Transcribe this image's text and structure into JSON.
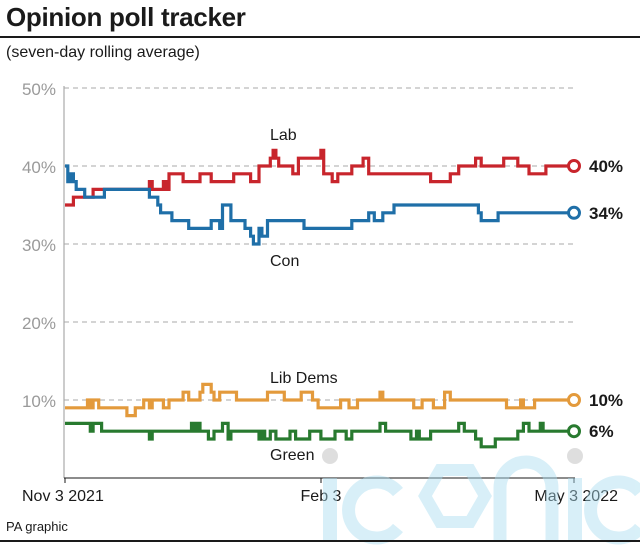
{
  "title": "Opinion poll tracker",
  "subtitle": "(seven-day rolling average)",
  "credit": "PA graphic",
  "watermark": "iconic",
  "chart_data": {
    "type": "line",
    "y_ticks": [
      "50%",
      "40%",
      "30%",
      "20%",
      "10%"
    ],
    "ylim": [
      0,
      50
    ],
    "x_ticks": [
      "Nov 3 2021",
      "Feb 3",
      "May 3 2022"
    ],
    "xlim": [
      0,
      181
    ],
    "grid": true,
    "series": [
      {
        "name": "Lab",
        "color": "#c8252c",
        "end_label": "40%",
        "points": [
          [
            0,
            35
          ],
          [
            3,
            35
          ],
          [
            3,
            36
          ],
          [
            10,
            36
          ],
          [
            10,
            37
          ],
          [
            30,
            37
          ],
          [
            30,
            38
          ],
          [
            31,
            38
          ],
          [
            31,
            37
          ],
          [
            35,
            37
          ],
          [
            35,
            38
          ],
          [
            36,
            38
          ],
          [
            36,
            37
          ],
          [
            37,
            37
          ],
          [
            37,
            39
          ],
          [
            42,
            39
          ],
          [
            42,
            38
          ],
          [
            48,
            38
          ],
          [
            48,
            39
          ],
          [
            52,
            39
          ],
          [
            52,
            38
          ],
          [
            60,
            38
          ],
          [
            60,
            39
          ],
          [
            66,
            39
          ],
          [
            66,
            38
          ],
          [
            69,
            38
          ],
          [
            69,
            40
          ],
          [
            73,
            40
          ],
          [
            73,
            41
          ],
          [
            74,
            41
          ],
          [
            74,
            42
          ],
          [
            75,
            42
          ],
          [
            75,
            41
          ],
          [
            76,
            41
          ],
          [
            76,
            40
          ],
          [
            81,
            40
          ],
          [
            81,
            39
          ],
          [
            83,
            39
          ],
          [
            83,
            41
          ],
          [
            91,
            41
          ],
          [
            91,
            42
          ],
          [
            92,
            42
          ],
          [
            92,
            39
          ],
          [
            95,
            39
          ],
          [
            95,
            38
          ],
          [
            97,
            38
          ],
          [
            97,
            39
          ],
          [
            102,
            39
          ],
          [
            102,
            40
          ],
          [
            106,
            40
          ],
          [
            106,
            41
          ],
          [
            108,
            41
          ],
          [
            108,
            39
          ],
          [
            130,
            39
          ],
          [
            130,
            38
          ],
          [
            137,
            38
          ],
          [
            137,
            39
          ],
          [
            140,
            39
          ],
          [
            140,
            40
          ],
          [
            146,
            40
          ],
          [
            146,
            41
          ],
          [
            148,
            41
          ],
          [
            148,
            40
          ],
          [
            156,
            40
          ],
          [
            156,
            41
          ],
          [
            161,
            41
          ],
          [
            161,
            40
          ],
          [
            165,
            40
          ],
          [
            165,
            39
          ],
          [
            171,
            39
          ],
          [
            171,
            40
          ],
          [
            181,
            40
          ]
        ]
      },
      {
        "name": "Con",
        "color": "#1f6fa8",
        "end_label": "34%",
        "points": [
          [
            0,
            40
          ],
          [
            1,
            40
          ],
          [
            1,
            38
          ],
          [
            2,
            38
          ],
          [
            2,
            39
          ],
          [
            3,
            39
          ],
          [
            3,
            38
          ],
          [
            4,
            38
          ],
          [
            4,
            37
          ],
          [
            7,
            37
          ],
          [
            7,
            36
          ],
          [
            14,
            36
          ],
          [
            14,
            37
          ],
          [
            30,
            37
          ],
          [
            30,
            36
          ],
          [
            33,
            36
          ],
          [
            33,
            35
          ],
          [
            34,
            35
          ],
          [
            34,
            34
          ],
          [
            38,
            34
          ],
          [
            38,
            33
          ],
          [
            44,
            33
          ],
          [
            44,
            32
          ],
          [
            52,
            32
          ],
          [
            52,
            33
          ],
          [
            55,
            33
          ],
          [
            55,
            32
          ],
          [
            56,
            32
          ],
          [
            56,
            35
          ],
          [
            59,
            35
          ],
          [
            59,
            33
          ],
          [
            64,
            33
          ],
          [
            64,
            32
          ],
          [
            66,
            32
          ],
          [
            66,
            31
          ],
          [
            67,
            31
          ],
          [
            67,
            30
          ],
          [
            69,
            30
          ],
          [
            69,
            32
          ],
          [
            70,
            32
          ],
          [
            70,
            31
          ],
          [
            72,
            31
          ],
          [
            72,
            33
          ],
          [
            85,
            33
          ],
          [
            85,
            32
          ],
          [
            102,
            32
          ],
          [
            102,
            33
          ],
          [
            108,
            33
          ],
          [
            108,
            34
          ],
          [
            110,
            34
          ],
          [
            110,
            33
          ],
          [
            113,
            33
          ],
          [
            113,
            34
          ],
          [
            117,
            34
          ],
          [
            117,
            35
          ],
          [
            147,
            35
          ],
          [
            147,
            34
          ],
          [
            148,
            34
          ],
          [
            148,
            33
          ],
          [
            154,
            33
          ],
          [
            154,
            34
          ],
          [
            181,
            34
          ]
        ]
      },
      {
        "name": "Lib Dems",
        "color": "#e39a3c",
        "end_label": "10%",
        "points": [
          [
            0,
            9
          ],
          [
            8,
            9
          ],
          [
            8,
            10
          ],
          [
            9,
            10
          ],
          [
            9,
            9
          ],
          [
            10,
            9
          ],
          [
            10,
            10
          ],
          [
            12,
            10
          ],
          [
            12,
            9
          ],
          [
            22,
            9
          ],
          [
            22,
            8
          ],
          [
            25,
            8
          ],
          [
            25,
            9
          ],
          [
            28,
            9
          ],
          [
            28,
            10
          ],
          [
            30,
            10
          ],
          [
            30,
            9
          ],
          [
            31,
            9
          ],
          [
            31,
            10
          ],
          [
            35,
            10
          ],
          [
            35,
            9
          ],
          [
            37,
            9
          ],
          [
            37,
            10
          ],
          [
            42,
            10
          ],
          [
            42,
            11
          ],
          [
            44,
            11
          ],
          [
            44,
            10
          ],
          [
            48,
            10
          ],
          [
            48,
            11
          ],
          [
            49,
            11
          ],
          [
            49,
            12
          ],
          [
            52,
            12
          ],
          [
            52,
            11
          ],
          [
            53,
            11
          ],
          [
            53,
            10
          ],
          [
            55,
            10
          ],
          [
            55,
            11
          ],
          [
            61,
            11
          ],
          [
            61,
            10
          ],
          [
            72,
            10
          ],
          [
            72,
            11
          ],
          [
            78,
            11
          ],
          [
            78,
            10
          ],
          [
            84,
            10
          ],
          [
            84,
            11
          ],
          [
            88,
            11
          ],
          [
            88,
            10
          ],
          [
            90,
            10
          ],
          [
            90,
            9
          ],
          [
            98,
            9
          ],
          [
            98,
            10
          ],
          [
            101,
            10
          ],
          [
            101,
            9
          ],
          [
            104,
            9
          ],
          [
            104,
            10
          ],
          [
            112,
            10
          ],
          [
            112,
            11
          ],
          [
            113,
            11
          ],
          [
            113,
            10
          ],
          [
            124,
            10
          ],
          [
            124,
            9
          ],
          [
            127,
            9
          ],
          [
            127,
            10
          ],
          [
            131,
            10
          ],
          [
            131,
            9
          ],
          [
            135,
            9
          ],
          [
            135,
            11
          ],
          [
            137,
            11
          ],
          [
            137,
            10
          ],
          [
            157,
            10
          ],
          [
            157,
            9
          ],
          [
            162,
            9
          ],
          [
            162,
            10
          ],
          [
            163,
            10
          ],
          [
            163,
            9
          ],
          [
            167,
            9
          ],
          [
            167,
            10
          ],
          [
            181,
            10
          ]
        ]
      },
      {
        "name": "Green",
        "color": "#287a2f",
        "end_label": "6%",
        "points": [
          [
            0,
            7
          ],
          [
            9,
            7
          ],
          [
            9,
            6
          ],
          [
            10,
            6
          ],
          [
            10,
            7
          ],
          [
            13,
            7
          ],
          [
            13,
            6
          ],
          [
            30,
            6
          ],
          [
            30,
            5
          ],
          [
            31,
            5
          ],
          [
            31,
            6
          ],
          [
            45,
            6
          ],
          [
            45,
            7
          ],
          [
            46,
            7
          ],
          [
            46,
            6
          ],
          [
            47,
            6
          ],
          [
            47,
            7
          ],
          [
            48,
            7
          ],
          [
            48,
            6
          ],
          [
            51,
            6
          ],
          [
            51,
            5
          ],
          [
            53,
            5
          ],
          [
            53,
            6
          ],
          [
            56,
            6
          ],
          [
            56,
            7
          ],
          [
            58,
            7
          ],
          [
            58,
            5
          ],
          [
            59,
            5
          ],
          [
            59,
            6
          ],
          [
            69,
            6
          ],
          [
            69,
            5
          ],
          [
            70,
            5
          ],
          [
            70,
            6
          ],
          [
            71,
            6
          ],
          [
            71,
            5
          ],
          [
            73,
            5
          ],
          [
            73,
            6
          ],
          [
            75,
            6
          ],
          [
            75,
            5
          ],
          [
            80,
            5
          ],
          [
            80,
            6
          ],
          [
            82,
            6
          ],
          [
            82,
            5
          ],
          [
            87,
            5
          ],
          [
            87,
            6
          ],
          [
            91,
            6
          ],
          [
            91,
            5
          ],
          [
            96,
            5
          ],
          [
            96,
            6
          ],
          [
            100,
            6
          ],
          [
            100,
            5
          ],
          [
            102,
            5
          ],
          [
            102,
            6
          ],
          [
            112,
            6
          ],
          [
            112,
            7
          ],
          [
            114,
            7
          ],
          [
            114,
            6
          ],
          [
            123,
            6
          ],
          [
            123,
            5
          ],
          [
            125,
            5
          ],
          [
            125,
            6
          ],
          [
            126,
            6
          ],
          [
            126,
            5
          ],
          [
            130,
            5
          ],
          [
            130,
            6
          ],
          [
            140,
            6
          ],
          [
            140,
            7
          ],
          [
            142,
            7
          ],
          [
            142,
            6
          ],
          [
            146,
            6
          ],
          [
            146,
            5
          ],
          [
            148,
            5
          ],
          [
            148,
            4
          ],
          [
            153,
            4
          ],
          [
            153,
            5
          ],
          [
            161,
            5
          ],
          [
            161,
            6
          ],
          [
            163,
            6
          ],
          [
            163,
            7
          ],
          [
            165,
            7
          ],
          [
            165,
            6
          ],
          [
            169,
            6
          ],
          [
            169,
            7
          ],
          [
            170,
            7
          ],
          [
            170,
            6
          ],
          [
            181,
            6
          ]
        ]
      }
    ]
  }
}
